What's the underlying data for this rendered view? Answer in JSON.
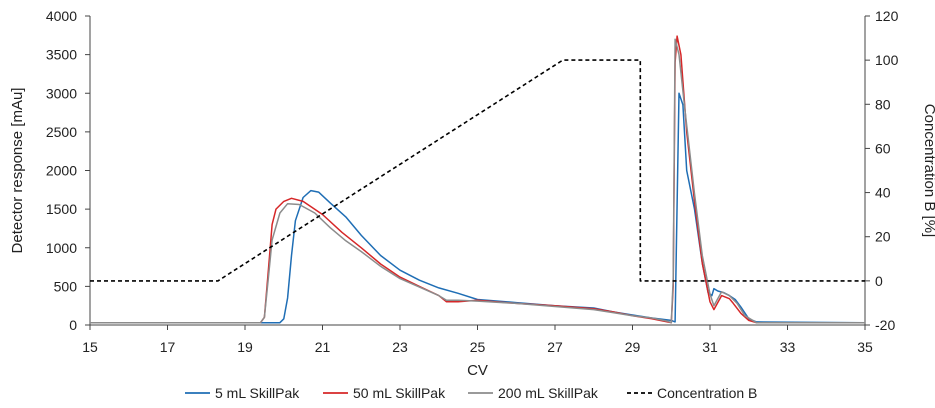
{
  "chart_data": {
    "type": "line",
    "title": "",
    "xlabel": "CV",
    "ylabel": "Detector response [mAu]",
    "y2label": "Concentration B [%]",
    "xlim": [
      15,
      35
    ],
    "ylim": [
      0,
      4000
    ],
    "y2lim": [
      -20,
      120
    ],
    "grid": false,
    "legend_position": "bottom",
    "x_ticks": [
      15,
      17,
      19,
      21,
      23,
      25,
      27,
      29,
      31,
      33,
      35
    ],
    "y_ticks": [
      0,
      500,
      1000,
      1500,
      2000,
      2500,
      3000,
      3500,
      4000
    ],
    "y2_ticks": [
      -20,
      0,
      20,
      40,
      60,
      80,
      100,
      120
    ],
    "series": [
      {
        "name": "5 mL SkillPak",
        "color": "#1f6eb5",
        "axis": "left",
        "dash": "solid",
        "points": [
          [
            15,
            30
          ],
          [
            19.9,
            30
          ],
          [
            20.0,
            80
          ],
          [
            20.1,
            350
          ],
          [
            20.2,
            900
          ],
          [
            20.3,
            1350
          ],
          [
            20.5,
            1650
          ],
          [
            20.7,
            1740
          ],
          [
            20.9,
            1720
          ],
          [
            21.2,
            1580
          ],
          [
            21.6,
            1400
          ],
          [
            22,
            1160
          ],
          [
            22.5,
            900
          ],
          [
            23,
            710
          ],
          [
            23.5,
            580
          ],
          [
            24,
            480
          ],
          [
            24.5,
            410
          ],
          [
            25,
            330
          ],
          [
            26,
            290
          ],
          [
            27,
            250
          ],
          [
            28,
            220
          ],
          [
            28.5,
            170
          ],
          [
            29,
            130
          ],
          [
            29.5,
            90
          ],
          [
            30.0,
            60
          ],
          [
            30.1,
            40
          ],
          [
            30.2,
            3000
          ],
          [
            30.3,
            2850
          ],
          [
            30.4,
            2000
          ],
          [
            30.6,
            1500
          ],
          [
            30.8,
            800
          ],
          [
            30.95,
            420
          ],
          [
            31.05,
            380
          ],
          [
            31.1,
            470
          ],
          [
            31.2,
            440
          ],
          [
            31.35,
            420
          ],
          [
            31.5,
            380
          ],
          [
            31.65,
            330
          ],
          [
            31.8,
            230
          ],
          [
            32.0,
            80
          ],
          [
            32.2,
            40
          ],
          [
            35,
            30
          ]
        ]
      },
      {
        "name": "50 mL SkillPak",
        "color": "#d62728",
        "axis": "left",
        "dash": "solid",
        "points": [
          [
            15,
            30
          ],
          [
            19.4,
            30
          ],
          [
            19.5,
            100
          ],
          [
            19.6,
            700
          ],
          [
            19.7,
            1300
          ],
          [
            19.8,
            1500
          ],
          [
            20.0,
            1600
          ],
          [
            20.2,
            1640
          ],
          [
            20.5,
            1600
          ],
          [
            21,
            1430
          ],
          [
            21.5,
            1200
          ],
          [
            22,
            1000
          ],
          [
            22.5,
            790
          ],
          [
            23,
            620
          ],
          [
            23.5,
            500
          ],
          [
            24,
            380
          ],
          [
            24.2,
            300
          ],
          [
            24.5,
            300
          ],
          [
            25,
            320
          ],
          [
            26,
            280
          ],
          [
            27,
            250
          ],
          [
            28,
            210
          ],
          [
            28.5,
            170
          ],
          [
            29,
            120
          ],
          [
            29.5,
            80
          ],
          [
            29.9,
            40
          ],
          [
            30.0,
            30
          ],
          [
            30.05,
            500
          ],
          [
            30.1,
            3400
          ],
          [
            30.15,
            3740
          ],
          [
            30.25,
            3500
          ],
          [
            30.4,
            2500
          ],
          [
            30.6,
            1600
          ],
          [
            30.8,
            800
          ],
          [
            31.0,
            300
          ],
          [
            31.1,
            200
          ],
          [
            31.3,
            380
          ],
          [
            31.5,
            340
          ],
          [
            31.6,
            280
          ],
          [
            31.8,
            150
          ],
          [
            32.0,
            60
          ],
          [
            32.2,
            30
          ],
          [
            35,
            30
          ]
        ]
      },
      {
        "name": "200 mL SkillPak",
        "color": "#8c8c8c",
        "axis": "left",
        "dash": "solid",
        "points": [
          [
            15,
            30
          ],
          [
            19.4,
            30
          ],
          [
            19.5,
            100
          ],
          [
            19.6,
            600
          ],
          [
            19.7,
            1100
          ],
          [
            19.9,
            1450
          ],
          [
            20.1,
            1570
          ],
          [
            20.4,
            1560
          ],
          [
            20.8,
            1450
          ],
          [
            21.2,
            1260
          ],
          [
            21.6,
            1090
          ],
          [
            22,
            950
          ],
          [
            22.5,
            760
          ],
          [
            23,
            600
          ],
          [
            23.5,
            490
          ],
          [
            24,
            380
          ],
          [
            24.2,
            320
          ],
          [
            24.5,
            320
          ],
          [
            25,
            310
          ],
          [
            26,
            280
          ],
          [
            27,
            240
          ],
          [
            28,
            200
          ],
          [
            28.5,
            160
          ],
          [
            29,
            120
          ],
          [
            29.5,
            90
          ],
          [
            29.9,
            50
          ],
          [
            30.0,
            30
          ],
          [
            30.05,
            600
          ],
          [
            30.1,
            3700
          ],
          [
            30.2,
            3500
          ],
          [
            30.35,
            2800
          ],
          [
            30.6,
            1700
          ],
          [
            30.8,
            900
          ],
          [
            31.0,
            400
          ],
          [
            31.1,
            250
          ],
          [
            31.3,
            430
          ],
          [
            31.5,
            380
          ],
          [
            31.7,
            280
          ],
          [
            31.9,
            120
          ],
          [
            32.2,
            30
          ],
          [
            35,
            30
          ]
        ]
      },
      {
        "name": "Concentration B",
        "color": "#000000",
        "axis": "right",
        "dash": "dashed",
        "points": [
          [
            15,
            0
          ],
          [
            18.3,
            0
          ],
          [
            27.2,
            100
          ],
          [
            29.2,
            100
          ],
          [
            29.2,
            0
          ],
          [
            35,
            0
          ]
        ]
      }
    ]
  }
}
